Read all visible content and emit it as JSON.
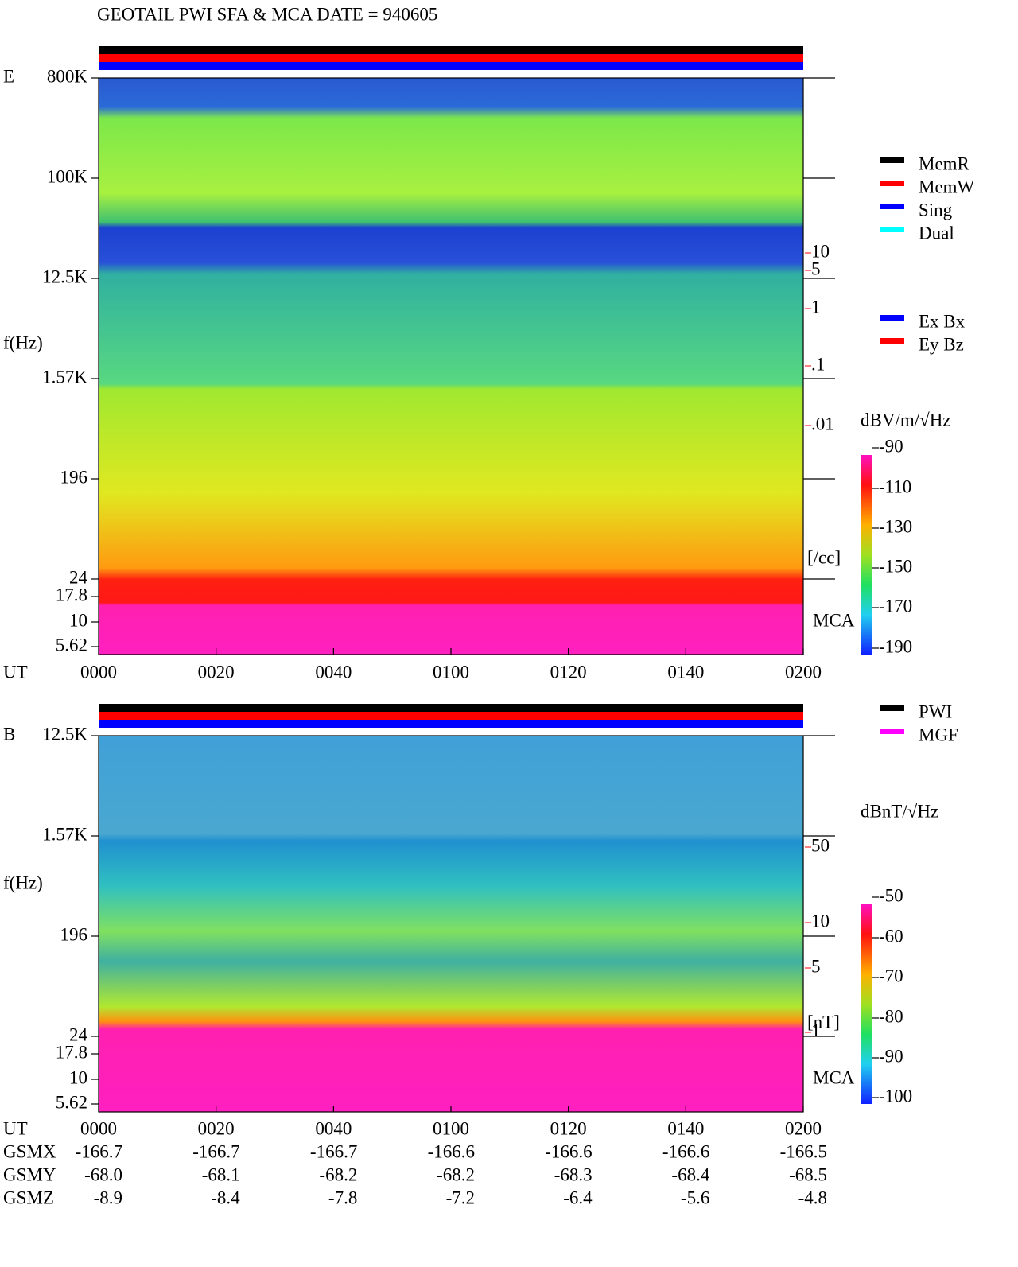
{
  "title": "GEOTAIL   PWI SFA & MCA   DATE = 940605",
  "panels": [
    {
      "label": "E",
      "y_axis_label": "f(Hz)",
      "x_axis_label": "UT",
      "freq_ticks": [
        "800K",
        "100K",
        "12.5K",
        "1.57K",
        "196",
        "24",
        "17.8",
        "10",
        "5.62"
      ],
      "time_ticks": [
        "0000",
        "0020",
        "0040",
        "0100",
        "0120",
        "0140",
        "0200"
      ],
      "legend": [
        {
          "text": "MemR",
          "color": "#000000"
        },
        {
          "text": "MemW",
          "color": "#ff0000"
        },
        {
          "text": "Sing",
          "color": "#0000ff"
        },
        {
          "text": "Dual",
          "color": "#00ffff"
        }
      ],
      "legend2": [
        {
          "text": "Ex Bx",
          "color": "#0000ff"
        },
        {
          "text": "Ey Bz",
          "color": "#ff0000"
        }
      ],
      "scale_ticks": [
        "10",
        "5",
        "1",
        ".1",
        ".01"
      ],
      "scale_unit": "[/cc]",
      "mca_label": "MCA",
      "colorbar_unit": "dBV/m/√Hz",
      "colorbar_ticks": [
        "-90",
        "-110",
        "-130",
        "-150",
        "-170",
        "-190"
      ]
    },
    {
      "label": "B",
      "y_axis_label": "f(Hz)",
      "x_axis_label": "UT",
      "freq_ticks": [
        "12.5K",
        "1.57K",
        "196",
        "24",
        "17.8",
        "10",
        "5.62"
      ],
      "time_ticks": [
        "0000",
        "0020",
        "0040",
        "0100",
        "0120",
        "0140",
        "0200"
      ],
      "legend": [
        {
          "text": "PWI",
          "color": "#000000"
        },
        {
          "text": "MGF",
          "color": "#ff00ff"
        }
      ],
      "legend2": [],
      "scale_ticks": [
        "50",
        "10",
        "5",
        "1"
      ],
      "scale_unit": "[nT]",
      "mca_label": "MCA",
      "colorbar_unit": "dBnT/√Hz",
      "colorbar_ticks": [
        "-50",
        "-60",
        "-70",
        "-80",
        "-90",
        "-100"
      ]
    }
  ],
  "orbit": {
    "rows": [
      {
        "label": "GSMX",
        "values": [
          "-166.7",
          "-166.7",
          "-166.7",
          "-166.6",
          "-166.6",
          "-166.6",
          "-166.5"
        ]
      },
      {
        "label": "GSMY",
        "values": [
          "-68.0",
          "-68.1",
          "-68.2",
          "-68.2",
          "-68.3",
          "-68.4",
          "-68.5"
        ]
      },
      {
        "label": "GSMZ",
        "values": [
          "-8.9",
          "-8.4",
          "-7.8",
          "-7.2",
          "-6.4",
          "-5.6",
          "-4.8"
        ]
      }
    ]
  }
}
